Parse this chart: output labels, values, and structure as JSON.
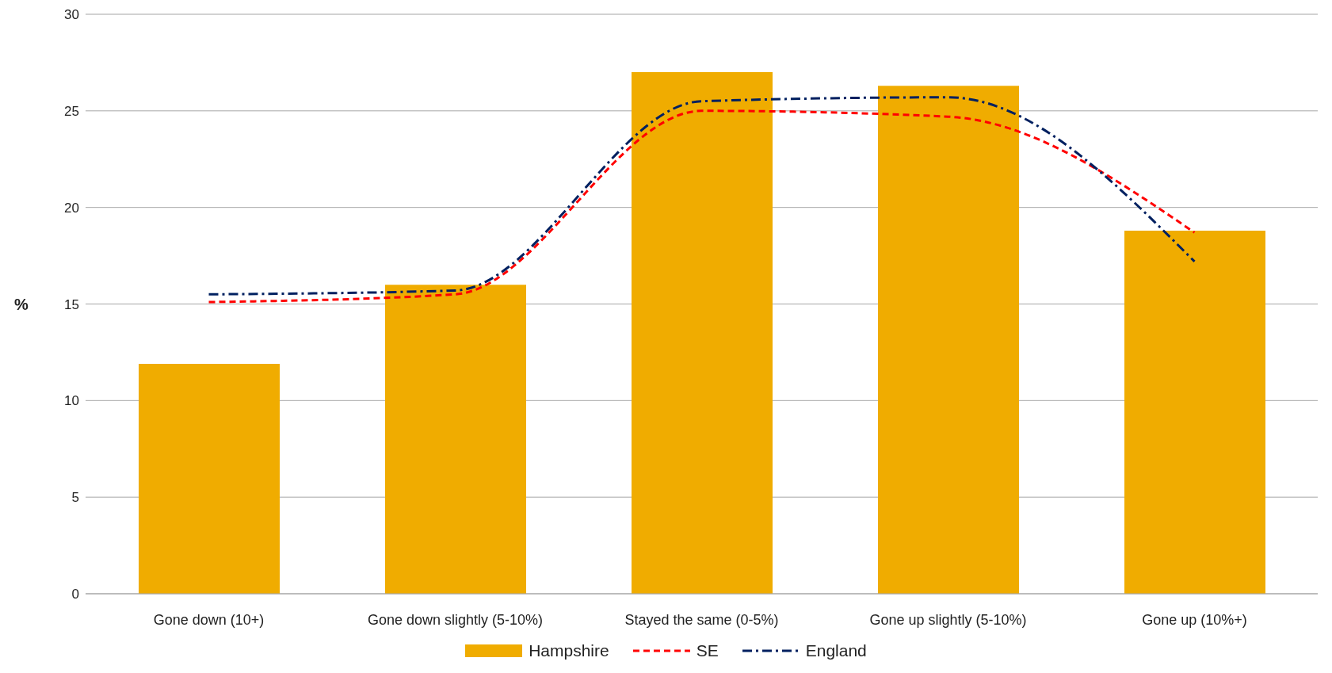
{
  "chart_data": {
    "type": "bar",
    "ylabel": "%",
    "categories": [
      "Gone down (10+)",
      "Gone down slightly (5-10%)",
      "Stayed the same (0-5%)",
      "Gone up slightly (5-10%)",
      "Gone up (10%+)"
    ],
    "series": [
      {
        "name": "Hampshire",
        "color": "#f0ac00",
        "values": [
          11.9,
          16.0,
          27.0,
          26.3,
          18.8
        ]
      },
      {
        "name": "SE",
        "type": "line",
        "color": "#ff0000",
        "line_style": "dashed",
        "values": [
          15.1,
          15.5,
          25.0,
          24.7,
          18.7
        ]
      },
      {
        "name": "England",
        "type": "line",
        "color": "#002060",
        "line_style": "dashdot",
        "values": [
          15.5,
          15.7,
          25.5,
          25.7,
          17.2
        ]
      }
    ],
    "ylim": [
      0,
      30
    ],
    "yticks": [
      0,
      5,
      10,
      15,
      20,
      25,
      30
    ],
    "grid": "y",
    "legend": "bottom",
    "marker": "none"
  }
}
